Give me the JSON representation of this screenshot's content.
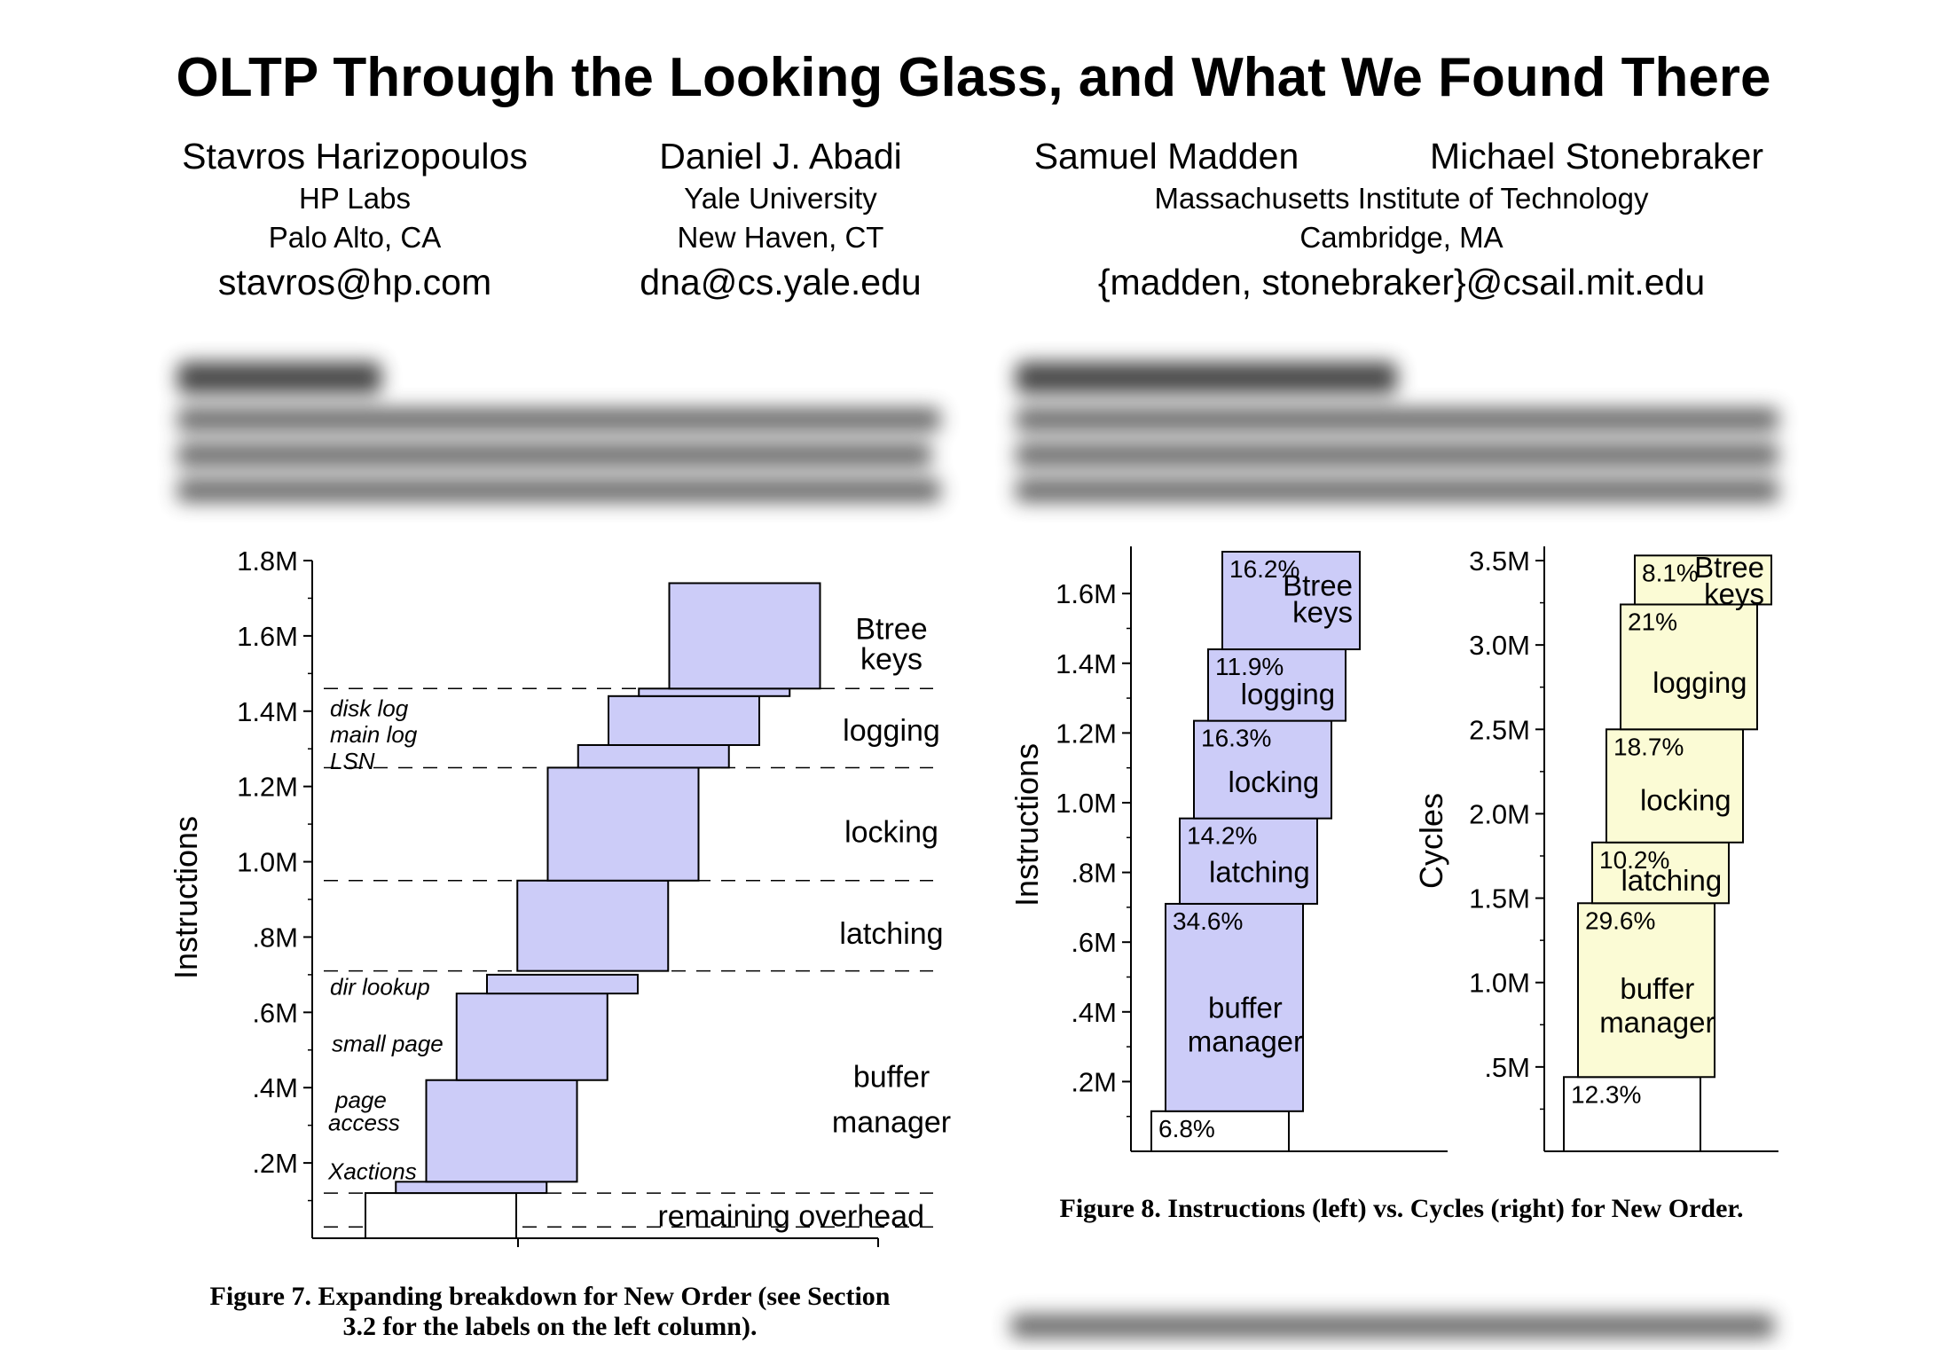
{
  "paper": {
    "title": "OLTP Through the Looking Glass, and What We Found There",
    "authors": [
      {
        "name": "Stavros Harizopoulos",
        "affiliation": "HP Labs",
        "location": "Palo Alto, CA",
        "email": "stavros@hp.com"
      },
      {
        "name": "Daniel J. Abadi",
        "affiliation": "Yale University",
        "location": "New Haven, CT",
        "email": "dna@cs.yale.edu"
      },
      {
        "name": "Samuel Madden",
        "affiliation": "Massachusetts Institute of Technology",
        "location": "Cambridge, MA",
        "email": "{madden, stonebraker}@csail.mit.edu"
      },
      {
        "name": "Michael Stonebraker"
      }
    ],
    "figure7_caption_line1": "Figure 7.  Expanding breakdown for New Order (see Section",
    "figure7_caption_line2": "3.2 for the labels on the left column).",
    "figure8_caption": "Figure 8.  Instructions (left) vs. Cycles (right) for New Order."
  },
  "chart_data": [
    {
      "type": "bar",
      "ylabel": "Instructions",
      "ylim": [
        0,
        1.8
      ],
      "yticks": [
        ".2M",
        ".4M",
        ".6M",
        ".8M",
        "1.0M",
        "1.2M",
        "1.4M",
        "1.6M",
        "1.8M"
      ],
      "color": "#ccccf8",
      "boxes": [
        {
          "column": 0,
          "bottom": 0.0,
          "top": 0.12,
          "filled": false
        },
        {
          "column": 0.5,
          "bottom": 0.12,
          "top": 0.15,
          "filled": true
        },
        {
          "column": 1,
          "bottom": 0.15,
          "top": 0.42,
          "filled": true
        },
        {
          "column": 1.5,
          "bottom": 0.42,
          "top": 0.65,
          "filled": true
        },
        {
          "column": 2,
          "bottom": 0.65,
          "top": 0.7,
          "filled": true
        },
        {
          "column": 2.5,
          "bottom": 0.71,
          "top": 0.95,
          "filled": true
        },
        {
          "column": 3,
          "bottom": 0.95,
          "top": 1.25,
          "filled": true
        },
        {
          "column": 3.5,
          "bottom": 1.25,
          "top": 1.31,
          "filled": true
        },
        {
          "column": 4,
          "bottom": 1.31,
          "top": 1.44,
          "filled": true
        },
        {
          "column": 4.5,
          "bottom": 1.44,
          "top": 1.46,
          "filled": true
        },
        {
          "column": 5,
          "bottom": 1.46,
          "top": 1.74,
          "filled": true
        }
      ],
      "dashed_levels": [
        0.03,
        0.12,
        0.71,
        0.95,
        1.25,
        1.46
      ],
      "left_labels": [
        {
          "text": "disk log",
          "y": 1.41
        },
        {
          "text": "main log",
          "y": 1.34
        },
        {
          "text": "LSN",
          "y": 1.27
        },
        {
          "text": "dir lookup",
          "y": 0.67
        },
        {
          "text": "small page",
          "y": 0.52
        },
        {
          "text": "page",
          "y": 0.37
        },
        {
          "text": "access",
          "y": 0.31
        },
        {
          "text": "Xactions",
          "y": 0.18
        }
      ],
      "right_labels": [
        {
          "text": "Btree",
          "y": 1.62
        },
        {
          "text": "keys",
          "y": 1.54
        },
        {
          "text": "logging",
          "y": 1.35
        },
        {
          "text": "locking",
          "y": 1.08
        },
        {
          "text": "latching",
          "y": 0.81
        },
        {
          "text": "buffer",
          "y": 0.43
        },
        {
          "text": "manager",
          "y": 0.31
        },
        {
          "text": "remaining overhead",
          "y": 0.06
        }
      ]
    },
    {
      "type": "bar",
      "ylabel": "Instructions",
      "ylim": [
        0,
        1.72
      ],
      "yticks": [
        ".2M",
        ".4M",
        ".6M",
        ".8M",
        "1.0M",
        "1.2M",
        "1.4M",
        "1.6M"
      ],
      "color": "#ccccf8",
      "segments": [
        {
          "label": "",
          "percent": "6.8%",
          "bottom": 0.0,
          "top": 0.115,
          "filled": false
        },
        {
          "label": "buffer manager",
          "percent": "34.6%",
          "bottom": 0.115,
          "top": 0.71
        },
        {
          "label": "latching",
          "percent": "14.2%",
          "bottom": 0.71,
          "top": 0.955
        },
        {
          "label": "locking",
          "percent": "16.3%",
          "bottom": 0.955,
          "top": 1.235
        },
        {
          "label": "logging",
          "percent": "11.9%",
          "bottom": 1.235,
          "top": 1.44
        },
        {
          "label": "Btree keys",
          "percent": "16.2%",
          "bottom": 1.44,
          "top": 1.72
        }
      ]
    },
    {
      "type": "bar",
      "ylabel": "Cycles",
      "ylim": [
        0,
        3.5
      ],
      "yticks": [
        ".5M",
        "1.0M",
        "1.5M",
        "2.0M",
        "2.5M",
        "3.0M",
        "3.5M"
      ],
      "color": "#fbfbd5",
      "segments": [
        {
          "label": "",
          "percent": "12.3%",
          "bottom": 0.0,
          "top": 0.44,
          "filled": false
        },
        {
          "label": "buffer manager",
          "percent": "29.6%",
          "bottom": 0.44,
          "top": 1.47
        },
        {
          "label": "latching",
          "percent": "10.2%",
          "bottom": 1.47,
          "top": 1.83
        },
        {
          "label": "locking",
          "percent": "18.7%",
          "bottom": 1.83,
          "top": 2.5
        },
        {
          "label": "logging",
          "percent": "21%",
          "bottom": 2.5,
          "top": 3.24
        },
        {
          "label": "Btree keys",
          "percent": "8.1%",
          "bottom": 3.24,
          "top": 3.53
        }
      ]
    }
  ]
}
